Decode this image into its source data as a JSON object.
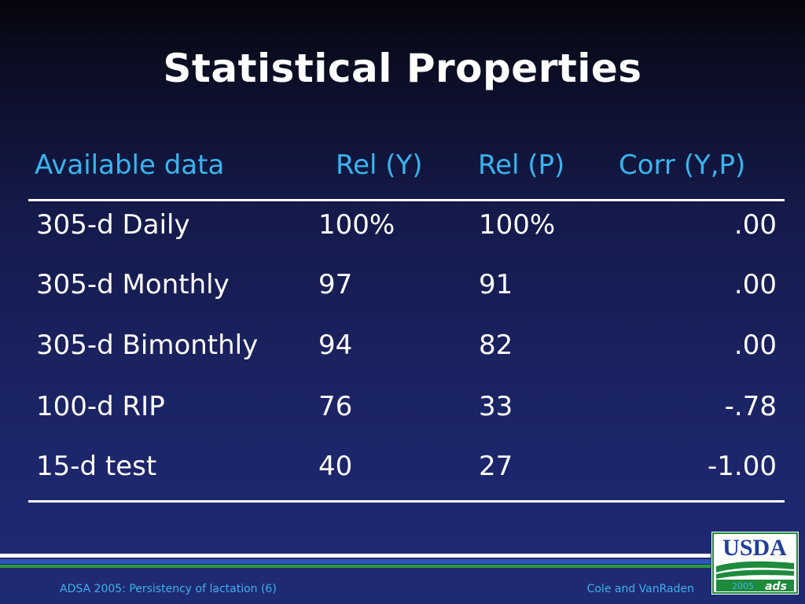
{
  "slide": {
    "title": "Statistical Properties"
  },
  "table": {
    "headers": [
      "Available data",
      "Rel (Y)",
      "Rel (P)",
      "Corr (Y,P)"
    ],
    "rows": [
      [
        "305-d Daily",
        "100%",
        "100%",
        ".00"
      ],
      [
        "305-d Monthly",
        "97",
        "91",
        ".00"
      ],
      [
        "305-d Bimonthly",
        "94",
        "82",
        ".00"
      ],
      [
        "100-d RIP",
        "76",
        "33",
        "-.78"
      ],
      [
        "15-d test",
        "40",
        "27",
        "-1.00"
      ]
    ]
  },
  "footer": {
    "left_text": "ADSA 2005: Persistency of lactation (6)",
    "right_text": "Cole and VanRaden"
  },
  "logo": {
    "text": "USDA",
    "year": "2005",
    "mark": "ads",
    "colors": {
      "blue": "#1f3f99",
      "green": "#1e8a3c"
    }
  },
  "colors": {
    "header_text": "#39b5ee",
    "footer_text": "#3fb0ea",
    "stripe_blue": "#2d56b8",
    "stripe_green": "#2e9b3a"
  }
}
